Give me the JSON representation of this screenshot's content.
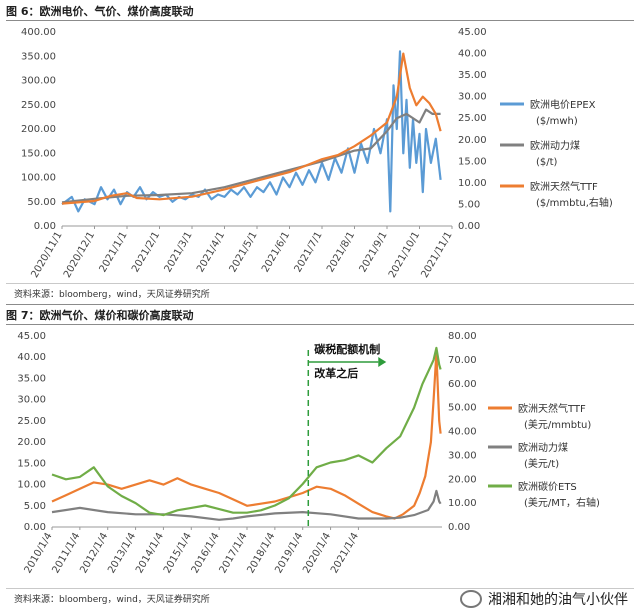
{
  "figures": [
    {
      "title": "图 6：欧洲电价、气价、煤价高度联动",
      "source": "资料来源：bloomberg，wind，天风证券研究所"
    },
    {
      "title": "图 7：欧洲气价、煤价和碳价高度联动",
      "source": "资料来源：bloomberg，wind，天风证券研究所",
      "annotation": [
        "碳税配额机制",
        "改革之后"
      ]
    }
  ],
  "watermark": "湘湘和她的油气小伙伴",
  "chart_data": [
    {
      "type": "line",
      "title": "图 6：欧洲电价、气价、煤价高度联动",
      "x": [
        "2020/11/1",
        "2020/12/1",
        "2021/1/1",
        "2021/2/1",
        "2021/3/1",
        "2021/4/1",
        "2021/5/1",
        "2021/6/1",
        "2021/7/1",
        "2021/8/1",
        "2021/9/1",
        "2021/10/1",
        "2021/11/1"
      ],
      "left_axis": {
        "ylim": [
          0,
          400
        ],
        "ticks": [
          "0.00",
          "50.00",
          "100.00",
          "150.00",
          "200.00",
          "250.00",
          "300.00",
          "350.00",
          "400.00"
        ]
      },
      "right_axis": {
        "ylim": [
          0,
          45
        ],
        "ticks": [
          "0.00",
          "5.00",
          "10.00",
          "15.00",
          "20.00",
          "25.00",
          "30.00",
          "35.00",
          "40.00",
          "45.00"
        ]
      },
      "series": [
        {
          "name": "欧洲电价EPEX",
          "unit": "($/mwh)",
          "color": "#5b9bd5",
          "axis": "left",
          "points": [
            [
              0.0,
              45
            ],
            [
              0.3,
              60
            ],
            [
              0.5,
              30
            ],
            [
              0.7,
              55
            ],
            [
              1.0,
              45
            ],
            [
              1.2,
              80
            ],
            [
              1.4,
              55
            ],
            [
              1.6,
              75
            ],
            [
              1.8,
              45
            ],
            [
              2.0,
              70
            ],
            [
              2.2,
              60
            ],
            [
              2.4,
              80
            ],
            [
              2.6,
              55
            ],
            [
              2.8,
              70
            ],
            [
              3.0,
              60
            ],
            [
              3.2,
              65
            ],
            [
              3.4,
              50
            ],
            [
              3.6,
              60
            ],
            [
              3.8,
              55
            ],
            [
              4.0,
              65
            ],
            [
              4.2,
              60
            ],
            [
              4.4,
              75
            ],
            [
              4.6,
              55
            ],
            [
              4.8,
              65
            ],
            [
              5.0,
              60
            ],
            [
              5.2,
              75
            ],
            [
              5.4,
              65
            ],
            [
              5.6,
              80
            ],
            [
              5.8,
              60
            ],
            [
              6.0,
              80
            ],
            [
              6.2,
              70
            ],
            [
              6.4,
              90
            ],
            [
              6.6,
              65
            ],
            [
              6.8,
              100
            ],
            [
              7.0,
              80
            ],
            [
              7.2,
              110
            ],
            [
              7.4,
              85
            ],
            [
              7.6,
              115
            ],
            [
              7.8,
              90
            ],
            [
              8.0,
              130
            ],
            [
              8.2,
              95
            ],
            [
              8.4,
              140
            ],
            [
              8.6,
              110
            ],
            [
              8.8,
              160
            ],
            [
              9.0,
              110
            ],
            [
              9.2,
              170
            ],
            [
              9.4,
              130
            ],
            [
              9.6,
              200
            ],
            [
              9.8,
              150
            ],
            [
              10.0,
              220
            ],
            [
              10.1,
              30
            ],
            [
              10.2,
              290
            ],
            [
              10.3,
              200
            ],
            [
              10.4,
              360
            ],
            [
              10.5,
              150
            ],
            [
              10.6,
              260
            ],
            [
              10.7,
              120
            ],
            [
              10.8,
              220
            ],
            [
              10.9,
              130
            ],
            [
              11.0,
              190
            ],
            [
              11.1,
              70
            ],
            [
              11.2,
              200
            ],
            [
              11.35,
              130
            ],
            [
              11.5,
              180
            ],
            [
              11.65,
              95
            ]
          ]
        },
        {
          "name": "欧洲动力煤",
          "unit": "($/t)",
          "color": "#808080",
          "axis": "right",
          "points": [
            [
              0.0,
              5.5
            ],
            [
              1.0,
              6.3
            ],
            [
              2.0,
              7.0
            ],
            [
              3.0,
              7.2
            ],
            [
              4.0,
              7.6
            ],
            [
              5.0,
              9.0
            ],
            [
              6.0,
              11.0
            ],
            [
              7.0,
              13.0
            ],
            [
              8.0,
              15.0
            ],
            [
              9.0,
              17.5
            ],
            [
              9.5,
              18.0
            ],
            [
              10.0,
              22.0
            ],
            [
              10.3,
              25.0
            ],
            [
              10.6,
              26.0
            ],
            [
              11.0,
              24.0
            ],
            [
              11.2,
              27.0
            ],
            [
              11.4,
              26.0
            ],
            [
              11.65,
              26.0
            ]
          ]
        },
        {
          "name": "欧洲天然气TTF",
          "unit": "($/mmbtu,右轴)",
          "color": "#ed7d31",
          "axis": "right",
          "points": [
            [
              0.0,
              5.2
            ],
            [
              1.0,
              5.8
            ],
            [
              1.5,
              7.0
            ],
            [
              2.0,
              7.6
            ],
            [
              2.3,
              6.5
            ],
            [
              3.0,
              6.2
            ],
            [
              4.0,
              6.8
            ],
            [
              5.0,
              8.5
            ],
            [
              6.0,
              10.5
            ],
            [
              7.0,
              12.5
            ],
            [
              7.5,
              14.0
            ],
            [
              8.0,
              15.5
            ],
            [
              8.5,
              16.5
            ],
            [
              9.0,
              18.5
            ],
            [
              9.5,
              21.0
            ],
            [
              10.0,
              24.0
            ],
            [
              10.3,
              30.0
            ],
            [
              10.5,
              40.0
            ],
            [
              10.7,
              32.0
            ],
            [
              10.9,
              28.0
            ],
            [
              11.1,
              30.0
            ],
            [
              11.3,
              28.5
            ],
            [
              11.5,
              26.0
            ],
            [
              11.65,
              22.0
            ]
          ]
        }
      ]
    },
    {
      "type": "line",
      "title": "图 7：欧洲气价、煤价和碳价高度联动",
      "x": [
        "2010/1/4",
        "2011/1/4",
        "2012/1/4",
        "2013/1/4",
        "2014/1/4",
        "2015/1/4",
        "2016/1/4",
        "2017/1/4",
        "2018/1/4",
        "2019/1/4",
        "2020/1/4",
        "2021/1/4"
      ],
      "left_axis": {
        "ylim": [
          0,
          45
        ],
        "ticks": [
          "0.00",
          "5.00",
          "10.00",
          "15.00",
          "20.00",
          "25.00",
          "30.00",
          "35.00",
          "40.00",
          "45.00"
        ]
      },
      "right_axis": {
        "ylim": [
          0,
          80
        ],
        "ticks": [
          "0.00",
          "10.00",
          "20.00",
          "30.00",
          "40.00",
          "50.00",
          "60.00",
          "70.00",
          "80.00"
        ]
      },
      "series": [
        {
          "name": "欧洲天然气TTF",
          "unit": "(美元/mmbtu)",
          "color": "#ed7d31",
          "axis": "left",
          "points": [
            [
              0.0,
              6.0
            ],
            [
              0.5,
              7.5
            ],
            [
              1.0,
              9.0
            ],
            [
              1.5,
              10.5
            ],
            [
              2.0,
              10.0
            ],
            [
              2.5,
              9.0
            ],
            [
              3.0,
              10.0
            ],
            [
              3.5,
              11.0
            ],
            [
              4.0,
              10.0
            ],
            [
              4.5,
              11.5
            ],
            [
              5.0,
              10.0
            ],
            [
              5.5,
              9.0
            ],
            [
              6.0,
              8.0
            ],
            [
              6.5,
              6.5
            ],
            [
              7.0,
              5.0
            ],
            [
              7.5,
              5.5
            ],
            [
              8.0,
              6.0
            ],
            [
              8.5,
              7.0
            ],
            [
              9.0,
              8.0
            ],
            [
              9.5,
              9.5
            ],
            [
              10.0,
              9.0
            ],
            [
              10.5,
              7.5
            ],
            [
              11.0,
              5.5
            ],
            [
              11.5,
              3.5
            ],
            [
              12.0,
              2.5
            ],
            [
              12.3,
              2.0
            ],
            [
              12.6,
              3.0
            ],
            [
              13.0,
              5.0
            ],
            [
              13.2,
              8.0
            ],
            [
              13.4,
              12.0
            ],
            [
              13.6,
              20.0
            ],
            [
              13.7,
              30.0
            ],
            [
              13.8,
              41.0
            ],
            [
              13.9,
              25.0
            ],
            [
              13.95,
              22.0
            ]
          ]
        },
        {
          "name": "欧洲动力煤",
          "unit": "(美元/t)",
          "color": "#808080",
          "axis": "left",
          "points": [
            [
              0.0,
              3.5
            ],
            [
              1.0,
              4.5
            ],
            [
              2.0,
              3.5
            ],
            [
              3.0,
              3.0
            ],
            [
              4.0,
              3.0
            ],
            [
              5.0,
              2.5
            ],
            [
              6.0,
              1.7
            ],
            [
              6.5,
              2.0
            ],
            [
              7.0,
              2.5
            ],
            [
              8.0,
              3.2
            ],
            [
              9.0,
              3.5
            ],
            [
              10.0,
              3.0
            ],
            [
              11.0,
              2.0
            ],
            [
              12.0,
              2.0
            ],
            [
              12.5,
              2.2
            ],
            [
              13.0,
              2.8
            ],
            [
              13.5,
              4.0
            ],
            [
              13.7,
              6.0
            ],
            [
              13.8,
              8.5
            ],
            [
              13.9,
              6.0
            ],
            [
              13.95,
              5.5
            ]
          ]
        },
        {
          "name": "欧洲碳价ETS",
          "unit": "(美元/MT，右轴)",
          "color": "#70ad47",
          "axis": "right",
          "points": [
            [
              0.0,
              22.0
            ],
            [
              0.5,
              20.0
            ],
            [
              1.0,
              21.0
            ],
            [
              1.5,
              25.0
            ],
            [
              2.0,
              17.0
            ],
            [
              2.5,
              13.0
            ],
            [
              3.0,
              10.0
            ],
            [
              3.5,
              6.0
            ],
            [
              4.0,
              5.0
            ],
            [
              4.5,
              7.0
            ],
            [
              5.0,
              8.0
            ],
            [
              5.5,
              9.0
            ],
            [
              6.0,
              7.5
            ],
            [
              6.5,
              6.0
            ],
            [
              7.0,
              6.0
            ],
            [
              7.5,
              7.0
            ],
            [
              8.0,
              9.0
            ],
            [
              8.5,
              12.0
            ],
            [
              9.0,
              18.0
            ],
            [
              9.5,
              25.0
            ],
            [
              10.0,
              27.0
            ],
            [
              10.5,
              28.0
            ],
            [
              11.0,
              30.0
            ],
            [
              11.5,
              27.0
            ],
            [
              12.0,
              33.0
            ],
            [
              12.5,
              38.0
            ],
            [
              13.0,
              50.0
            ],
            [
              13.3,
              60.0
            ],
            [
              13.5,
              65.0
            ],
            [
              13.7,
              70.0
            ],
            [
              13.8,
              75.0
            ],
            [
              13.9,
              68.0
            ],
            [
              13.95,
              66.0
            ]
          ]
        }
      ],
      "annotation_x": 9.2
    }
  ]
}
